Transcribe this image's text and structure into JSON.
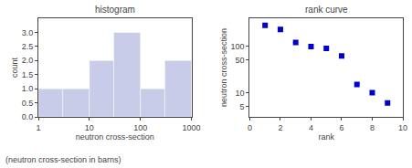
{
  "chart_data": [
    {
      "type": "histogram",
      "title": "histogram",
      "xlabel": "neutron cross-section",
      "ylabel": "count",
      "bins": [
        1,
        3,
        10,
        30,
        100,
        300,
        1000
      ],
      "values": [
        1,
        1,
        2,
        3,
        1,
        2
      ],
      "color": "#c8cce8",
      "log": "x",
      "xlim": [
        1,
        1000
      ],
      "xticks": [
        1,
        10,
        100,
        1000
      ],
      "ylim": [
        0,
        3.5
      ],
      "yticks": [
        {
          "value": 0.0,
          "label": "0.0"
        },
        0.5,
        {
          "value": 1.0,
          "label": "1.0"
        },
        1.5,
        {
          "value": 2.0,
          "label": "2.0"
        },
        2.5,
        {
          "value": 3.0,
          "label": "3.0"
        }
      ],
      "grid": false,
      "annotations": [
        {
          "text": "(neutron cross-section in barns)"
        }
      ]
    },
    {
      "type": "scatter",
      "title": "rank curve",
      "xlabel": "rank",
      "ylabel": "neutron cross-section",
      "x": [
        1,
        2,
        3,
        4,
        5,
        6,
        7,
        8,
        9
      ],
      "values": [
        280,
        230,
        120,
        98,
        90,
        62,
        15,
        10,
        6
      ],
      "color": "#0000cc",
      "marker": "square",
      "log": "y",
      "xlim": [
        0,
        10
      ],
      "xticks": [
        0,
        2,
        4,
        6,
        8,
        10
      ],
      "ylim": [
        3,
        400
      ],
      "yticks": [
        5,
        10,
        50,
        100
      ],
      "grid": false
    }
  ]
}
